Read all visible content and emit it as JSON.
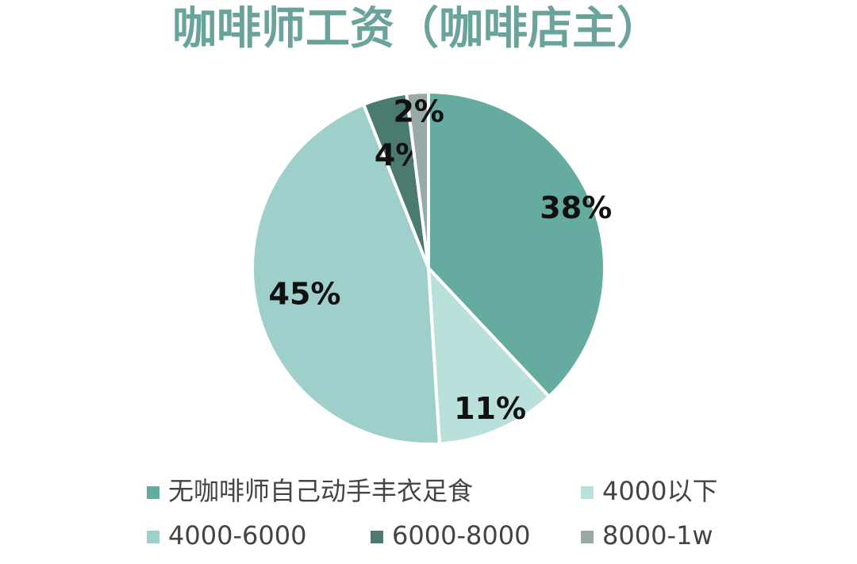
{
  "chart_data": {
    "type": "pie",
    "title": "咖啡师工资（咖啡店主）",
    "categories": [
      "无咖啡师自己动手丰衣足食",
      "4000以下",
      "4000-6000",
      "6000-8000",
      "8000-1w"
    ],
    "values": [
      38,
      11,
      45,
      4,
      2
    ],
    "value_labels": [
      "38%",
      "11%",
      "45%",
      "4%",
      "2%"
    ],
    "colors": [
      "#66ab9f",
      "#b9e0db",
      "#9ecfca",
      "#4a7a70",
      "#98aaa6"
    ],
    "legend": "bottom"
  }
}
